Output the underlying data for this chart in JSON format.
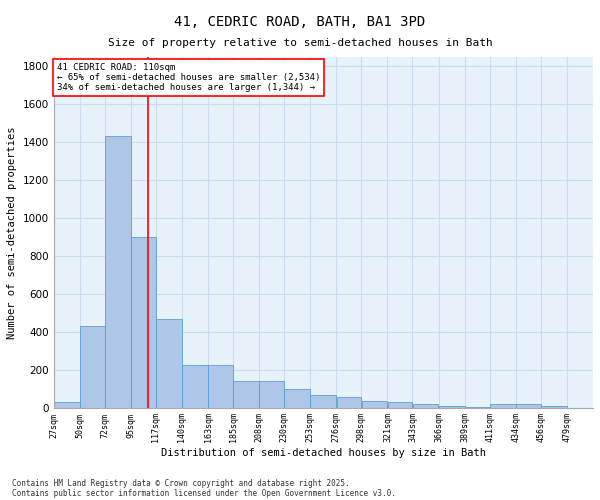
{
  "title": "41, CEDRIC ROAD, BATH, BA1 3PD",
  "subtitle": "Size of property relative to semi-detached houses in Bath",
  "xlabel": "Distribution of semi-detached houses by size in Bath",
  "ylabel": "Number of semi-detached properties",
  "footnote1": "Contains HM Land Registry data © Crown copyright and database right 2025.",
  "footnote2": "Contains public sector information licensed under the Open Government Licence v3.0.",
  "annotation_title": "41 CEDRIC ROAD: 110sqm",
  "annotation_line1": "← 65% of semi-detached houses are smaller (2,534)",
  "annotation_line2": "34% of semi-detached houses are larger (1,344) →",
  "property_size": 110,
  "bar_left_edges": [
    27,
    50,
    72,
    95,
    117,
    140,
    163,
    185,
    208,
    230,
    253,
    276,
    298,
    321,
    343,
    366,
    389,
    411,
    434,
    456
  ],
  "bar_widths": [
    23,
    22,
    23,
    22,
    23,
    23,
    22,
    23,
    22,
    23,
    23,
    22,
    23,
    22,
    23,
    23,
    22,
    23,
    22,
    23
  ],
  "bar_heights": [
    30,
    430,
    1435,
    900,
    470,
    225,
    225,
    140,
    140,
    100,
    65,
    55,
    35,
    30,
    20,
    10,
    5,
    20,
    20,
    10
  ],
  "bar_color": "#aec6e8",
  "bar_edge_color": "#5a9fd4",
  "vline_x": 110,
  "vline_color": "red",
  "ylim": [
    0,
    1850
  ],
  "yticks": [
    0,
    200,
    400,
    600,
    800,
    1000,
    1200,
    1400,
    1600,
    1800
  ],
  "grid_color": "#ccddf0",
  "bg_color": "#e8f2fb",
  "tick_labels": [
    "27sqm",
    "50sqm",
    "72sqm",
    "95sqm",
    "117sqm",
    "140sqm",
    "163sqm",
    "185sqm",
    "208sqm",
    "230sqm",
    "253sqm",
    "276sqm",
    "298sqm",
    "321sqm",
    "343sqm",
    "366sqm",
    "389sqm",
    "411sqm",
    "434sqm",
    "456sqm",
    "479sqm"
  ],
  "title_fontsize": 10,
  "subtitle_fontsize": 8,
  "footnote_fontsize": 5.5
}
